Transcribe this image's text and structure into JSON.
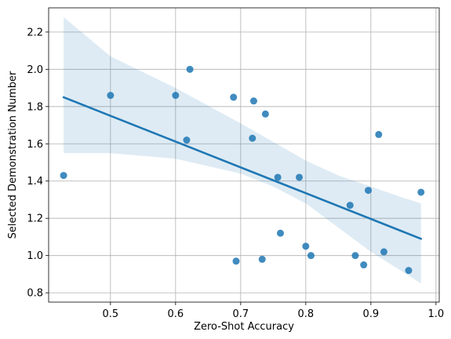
{
  "chart_data": {
    "type": "scatter",
    "title": "",
    "xlabel": "Zero-Shot Accuracy",
    "ylabel": "Selected Demonstration Number",
    "xlim": [
      0.405,
      1.005
    ],
    "ylim": [
      0.75,
      2.33
    ],
    "xticks": [
      0.5,
      0.6,
      0.7,
      0.8,
      0.9,
      1.0
    ],
    "xtick_labels": [
      "0.5",
      "0.6",
      "0.7",
      "0.8",
      "0.9",
      "1.0"
    ],
    "yticks": [
      0.8,
      1.0,
      1.2,
      1.4,
      1.6,
      1.8,
      2.0,
      2.2
    ],
    "ytick_labels": [
      "0.8",
      "1.0",
      "1.2",
      "1.4",
      "1.6",
      "1.8",
      "2.0",
      "2.2"
    ],
    "grid": true,
    "colors": {
      "points": "#1f77b4",
      "line": "#1f77b4",
      "band": "#1f77b4"
    },
    "points": [
      {
        "x": 0.428,
        "y": 1.43
      },
      {
        "x": 0.5,
        "y": 1.86
      },
      {
        "x": 0.6,
        "y": 1.86
      },
      {
        "x": 0.617,
        "y": 1.62
      },
      {
        "x": 0.622,
        "y": 2.0
      },
      {
        "x": 0.689,
        "y": 1.85
      },
      {
        "x": 0.693,
        "y": 0.97
      },
      {
        "x": 0.718,
        "y": 1.63
      },
      {
        "x": 0.72,
        "y": 1.83
      },
      {
        "x": 0.733,
        "y": 0.98
      },
      {
        "x": 0.738,
        "y": 1.76
      },
      {
        "x": 0.757,
        "y": 1.42
      },
      {
        "x": 0.761,
        "y": 1.12
      },
      {
        "x": 0.79,
        "y": 1.42
      },
      {
        "x": 0.8,
        "y": 1.05
      },
      {
        "x": 0.808,
        "y": 1.0
      },
      {
        "x": 0.868,
        "y": 1.27
      },
      {
        "x": 0.876,
        "y": 1.0
      },
      {
        "x": 0.889,
        "y": 0.95
      },
      {
        "x": 0.896,
        "y": 1.35
      },
      {
        "x": 0.912,
        "y": 1.65
      },
      {
        "x": 0.92,
        "y": 1.02
      },
      {
        "x": 0.958,
        "y": 0.92
      },
      {
        "x": 0.977,
        "y": 1.34
      }
    ],
    "regression": {
      "x": [
        0.428,
        0.977
      ],
      "y": [
        1.85,
        1.09
      ]
    },
    "confidence_band": {
      "x": [
        0.428,
        0.5,
        0.6,
        0.7,
        0.75,
        0.8,
        0.85,
        0.9,
        0.95,
        0.977
      ],
      "upper": [
        2.28,
        2.07,
        1.9,
        1.71,
        1.61,
        1.51,
        1.43,
        1.37,
        1.31,
        1.28
      ],
      "lower": [
        1.55,
        1.55,
        1.52,
        1.44,
        1.37,
        1.28,
        1.15,
        1.02,
        0.91,
        0.85
      ]
    }
  }
}
